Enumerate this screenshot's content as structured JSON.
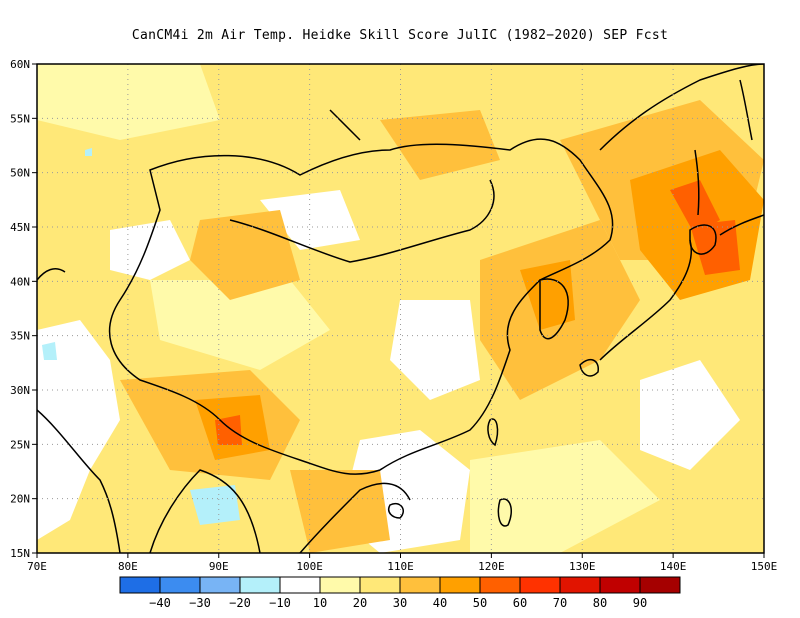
{
  "title": "CanCM4i  2m Air Temp. Heidke Skill Score JulIC (1982−2020) SEP Fcst",
  "chart_data": {
    "type": "heatmap",
    "title": "CanCM4i  2m Air Temp. Heidke Skill Score JulIC (1982−2020) SEP Fcst",
    "lon_range": [
      70,
      150
    ],
    "lat_range": [
      15,
      60
    ],
    "grid": true,
    "x_ticks": [
      {
        "value": 70,
        "label": "70E"
      },
      {
        "value": 80,
        "label": "80E"
      },
      {
        "value": 90,
        "label": "90E"
      },
      {
        "value": 100,
        "label": "100E"
      },
      {
        "value": 110,
        "label": "110E"
      },
      {
        "value": 120,
        "label": "120E"
      },
      {
        "value": 130,
        "label": "130E"
      },
      {
        "value": 140,
        "label": "140E"
      },
      {
        "value": 150,
        "label": "150E"
      }
    ],
    "y_ticks": [
      {
        "value": 15,
        "label": "15N"
      },
      {
        "value": 20,
        "label": "20N"
      },
      {
        "value": 25,
        "label": "25N"
      },
      {
        "value": 30,
        "label": "30N"
      },
      {
        "value": 35,
        "label": "35N"
      },
      {
        "value": 40,
        "label": "40N"
      },
      {
        "value": 45,
        "label": "45N"
      },
      {
        "value": 50,
        "label": "50N"
      },
      {
        "value": 55,
        "label": "55N"
      },
      {
        "value": 60,
        "label": "60N"
      }
    ],
    "colorbar": {
      "levels": [
        {
          "label": "−40",
          "value": -40
        },
        {
          "label": "−30",
          "value": -30
        },
        {
          "label": "−20",
          "value": -20
        },
        {
          "label": "−10",
          "value": -10
        },
        {
          "label": "10",
          "value": 10
        },
        {
          "label": "20",
          "value": 20
        },
        {
          "label": "30",
          "value": 30
        },
        {
          "label": "40",
          "value": 40
        },
        {
          "label": "50",
          "value": 50
        },
        {
          "label": "60",
          "value": 60
        },
        {
          "label": "70",
          "value": 70
        },
        {
          "label": "80",
          "value": 80
        },
        {
          "label": "90",
          "value": 90
        }
      ],
      "colors": [
        "#1e6ee6",
        "#3c8cf0",
        "#78b4f5",
        "#b4f0fa",
        "#ffffff",
        "#fffaaa",
        "#ffe878",
        "#ffc03c",
        "#ffa000",
        "#ff6000",
        "#ff3200",
        "#e11400",
        "#c00000",
        "#a50000"
      ]
    },
    "features": [
      {
        "name": "high-skill-japan-sakhalin",
        "value": 65,
        "lon": 143,
        "lat": 44
      },
      {
        "name": "high-skill-northeast-china",
        "value": 50,
        "lon": 126,
        "lat": 44
      },
      {
        "name": "high-skill-myanmar-border",
        "value": 55,
        "lon": 92,
        "lat": 26
      },
      {
        "name": "negative-skill-india-south",
        "value": -15,
        "lon": 88,
        "lat": 20
      },
      {
        "name": "negative-skill-west",
        "value": -15,
        "lon": 71,
        "lat": 34
      }
    ]
  }
}
